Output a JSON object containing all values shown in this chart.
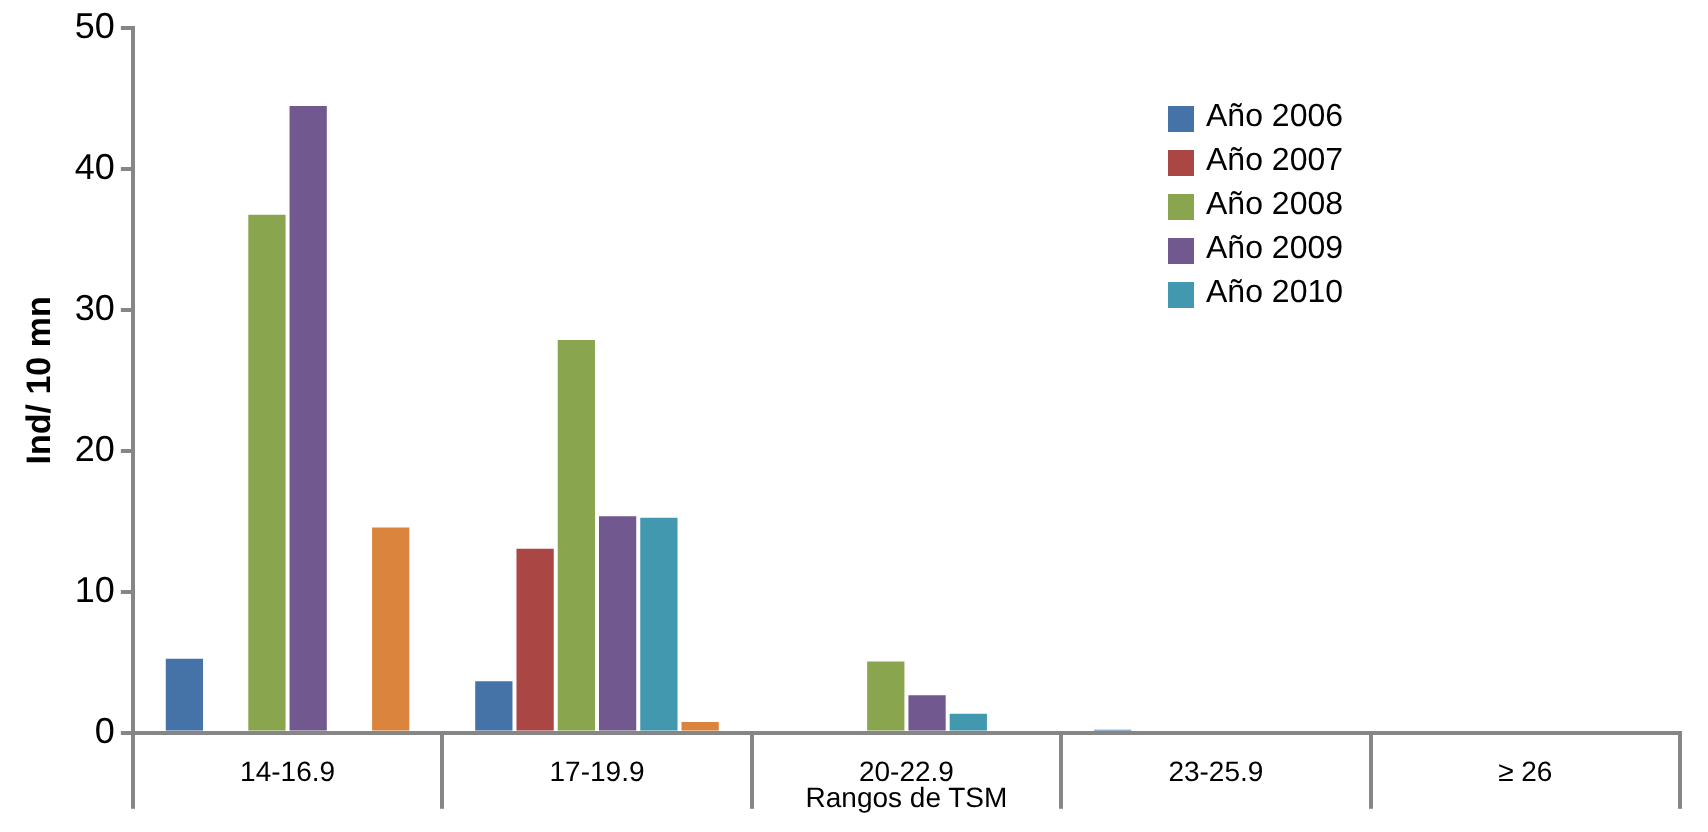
{
  "chart_data": {
    "type": "bar",
    "xlabel": "Rangos de TSM",
    "ylabel": "Ind/ 10 mn",
    "categories": [
      "14-16.9",
      "17-19.9",
      "20-22.9",
      "23-25.9",
      "≥ 26"
    ],
    "series": [
      {
        "name": "Año 2006",
        "color": "#4572a7",
        "values": [
          5.4,
          3.8,
          null,
          0.3,
          null
        ]
      },
      {
        "name": "Año 2007",
        "color": "#aa4643",
        "values": [
          null,
          13.2,
          null,
          null,
          null
        ]
      },
      {
        "name": "Año 2008",
        "color": "#89a54e",
        "values": [
          36.9,
          28.0,
          5.2,
          null,
          null
        ]
      },
      {
        "name": "Año 2009",
        "color": "#71588f",
        "values": [
          44.6,
          15.5,
          2.8,
          null,
          null
        ]
      },
      {
        "name": "Año 2010",
        "color": "#4198af",
        "values": [
          null,
          15.4,
          1.5,
          null,
          null
        ]
      },
      {
        "color": "#db843d",
        "values": [
          14.7,
          0.9,
          null,
          null,
          null
        ]
      }
    ],
    "ylim": [
      0,
      50
    ],
    "yticks": [
      0,
      10,
      20,
      30,
      40,
      50
    ],
    "grid": false,
    "legend": "top right"
  }
}
